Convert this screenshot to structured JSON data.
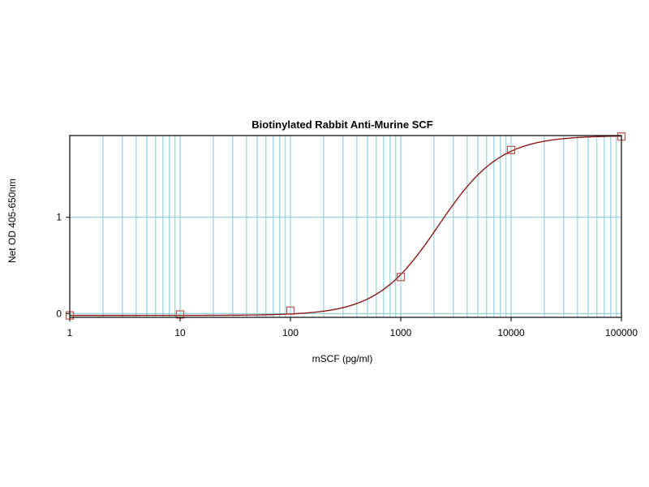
{
  "chart_data": {
    "type": "scatter",
    "title": "Biotinylated Rabbit Anti-Murine SCF",
    "xlabel": "mSCF (pg/ml)",
    "ylabel": "Net OD 405-650nm",
    "xscale": "log",
    "xlim": [
      1,
      100000
    ],
    "ylim": [
      -0.04,
      1.85
    ],
    "x_ticks": [
      "1",
      "10",
      "100",
      "1000",
      "10000",
      "100000"
    ],
    "y_ticks": [
      "0",
      "1"
    ],
    "grid": true,
    "legend": "none",
    "points": {
      "x": [
        1,
        10,
        100,
        1000,
        10000,
        100000
      ],
      "y": [
        -0.02,
        -0.01,
        0.03,
        0.38,
        1.7,
        1.84
      ]
    },
    "fit_curve": {
      "model": "4PL",
      "bottom": -0.02,
      "top": 1.85,
      "ec50": 2200,
      "hill": 1.55
    },
    "colors": {
      "grid": "#7fc9da",
      "fit_line": "#8b1a1a",
      "marker": "#c0504d",
      "frame": "#000000"
    }
  }
}
